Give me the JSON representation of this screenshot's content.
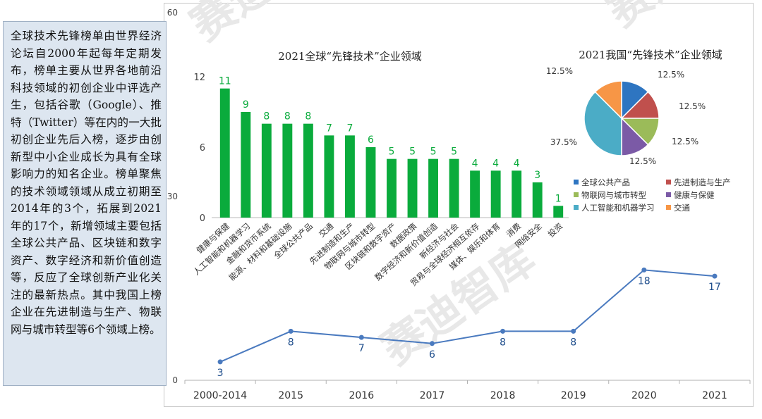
{
  "callout": {
    "text": "全球技术先锋榜单由世界经济论坛自2000年起每年定期发布，榜单主要从世界各地前沿科技领域的初创企业中评选产生，包括谷歌（Google）、推特（Twitter）等在内的一大批初创企业先后入榜，逐步由创新型中小企业成长为具有全球影响力的知名企业。榜单聚焦的技术领域领域从成立初期至2014年的3个，拓展到2021年的17个，新增领域主要包括全球公共产品、区块链和数字资产、数字经济和新价值创造等，反应了全球创新产业化关注的最新热点。其中我国上榜企业在先进制造与生产、物联网与城市转型等6个领域上榜。"
  },
  "watermark": "赛迪智库",
  "chart_data": [
    {
      "type": "line",
      "x": [
        "2000-2014",
        "2015",
        "2016",
        "2017",
        "2018",
        "2019",
        "2020",
        "2021"
      ],
      "values": [
        3,
        8,
        7,
        6,
        8,
        8,
        18,
        17
      ],
      "ylim": [
        0,
        60
      ],
      "yticks": [
        "0",
        "30",
        "60"
      ],
      "color": "#4a7abf"
    },
    {
      "type": "bar",
      "title": "2021全球“先锋技术”企业领域",
      "categories": [
        "健康与保健",
        "人工智能和机器学习",
        "金融和货币系统",
        "能源、材料和基础设施",
        "全球公共产品",
        "交通",
        "先进制造和生产",
        "物联网与城市转型",
        "区块链和数字资产",
        "数据政策",
        "数字经济和新价值创造",
        "新经济与社会",
        "贸易与全球经济相互依存",
        "媒体、娱乐和体育",
        "消费",
        "网络安全",
        "投资"
      ],
      "values": [
        11,
        9,
        8,
        8,
        8,
        7,
        7,
        6,
        5,
        5,
        5,
        5,
        4,
        4,
        4,
        3,
        1
      ],
      "ylim": [
        0,
        12
      ],
      "yticks": [
        "0",
        "6",
        "12"
      ],
      "color": "#0aab3c"
    },
    {
      "type": "pie",
      "title": "2021我国“先锋技术”企业领域",
      "labels": [
        "全球公共产品",
        "先进制造与生产",
        "物联网与城市转型",
        "健康与保健",
        "人工智能和机器学习",
        "交通"
      ],
      "values": [
        12.5,
        12.5,
        12.5,
        12.5,
        37.5,
        12.5
      ],
      "value_labels": [
        "12.5%",
        "12.5%",
        "12.5%",
        "12.5%",
        "37.5%",
        "12.5%"
      ],
      "colors": [
        "#2e75c1",
        "#c0504d",
        "#9bbb59",
        "#7b5aa6",
        "#4bacc6",
        "#f79646"
      ],
      "legend_position": "bottom"
    }
  ]
}
